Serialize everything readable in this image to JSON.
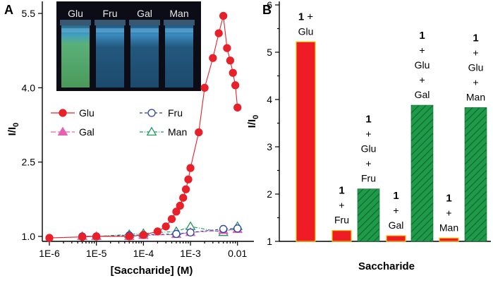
{
  "chart_data": [
    {
      "panel": "A",
      "type": "line",
      "xscale": "log",
      "xlim": [
        1e-06,
        0.012
      ],
      "ylim": [
        0.9,
        5.6
      ],
      "xlabel": "[Saccharide] (M)",
      "ylabel": "I/I",
      "ylabel_sub": "0",
      "xticks": [
        1e-06,
        1e-05,
        0.0001,
        0.001,
        0.01
      ],
      "xtick_labels": [
        "1E-6",
        "1E-5",
        "1E-4",
        "1E-3",
        "0.01"
      ],
      "yticks": [
        1.0,
        2.5,
        4.0,
        5.5
      ],
      "ytick_labels": [
        "1.0",
        "2.5",
        "4.0",
        "5.5"
      ],
      "inset_vials": [
        "Glu",
        "Fru",
        "Gal",
        "Man"
      ],
      "series": [
        {
          "name": "Glu",
          "color": "#e8202a",
          "marker": "circle-filled",
          "x": [
            1e-06,
            5e-06,
            1e-05,
            5e-05,
            0.0001,
            0.0002,
            0.0003,
            0.0004,
            0.0005,
            0.0006,
            0.0007,
            0.0008,
            0.0009,
            0.001,
            0.0015,
            0.002,
            0.003,
            0.004,
            0.005,
            0.006,
            0.007,
            0.008,
            0.009,
            0.01
          ],
          "y": [
            0.97,
            0.99,
            1.0,
            1.0,
            1.03,
            1.1,
            1.2,
            1.35,
            1.5,
            1.62,
            1.78,
            1.95,
            2.15,
            2.38,
            3.1,
            4.0,
            4.6,
            5.1,
            5.45,
            4.8,
            4.55,
            4.3,
            4.05,
            3.6
          ]
        },
        {
          "name": "Fru",
          "color": "#2a3fa8",
          "marker": "circle-open",
          "x": [
            5e-06,
            1e-05,
            5e-05,
            0.0001,
            0.0005,
            0.001,
            0.005,
            0.01
          ],
          "y": [
            1.0,
            1.0,
            1.02,
            1.03,
            1.05,
            1.08,
            1.15,
            1.16
          ]
        },
        {
          "name": "Gal",
          "color": "#e860b0",
          "marker": "triangle-filled",
          "x": [
            5e-06,
            1e-05,
            5e-05,
            0.0001,
            0.0005,
            0.001,
            0.005,
            0.01
          ],
          "y": [
            1.0,
            1.0,
            1.0,
            1.02,
            1.04,
            1.08,
            1.12,
            1.14
          ]
        },
        {
          "name": "Man",
          "color": "#1f9a60",
          "marker": "triangle-open",
          "x": [
            5e-06,
            1e-05,
            5e-05,
            0.0001,
            0.0005,
            0.001,
            0.005,
            0.01
          ],
          "y": [
            1.0,
            1.0,
            1.04,
            1.06,
            1.1,
            1.2,
            1.08,
            1.2
          ]
        }
      ]
    },
    {
      "panel": "B",
      "type": "bar",
      "ylim": [
        1,
        6
      ],
      "xlabel": "Saccharide",
      "ylabel": "I/I",
      "ylabel_sub": "0",
      "yticks": [
        1,
        2,
        3,
        4,
        5,
        6
      ],
      "ytick_labels": [
        "1",
        "2",
        "3",
        "4",
        "5",
        "6"
      ],
      "bars": [
        {
          "value": 5.22,
          "style": "red",
          "label_lines": [
            "1 +",
            "Glu"
          ]
        },
        {
          "value": 1.23,
          "style": "red",
          "label_lines": [
            "1",
            "+",
            "Fru"
          ]
        },
        {
          "value": 2.11,
          "style": "green",
          "label_lines": [
            "1",
            "+",
            "Glu",
            "+",
            "Fru"
          ]
        },
        {
          "value": 1.12,
          "style": "red",
          "label_lines": [
            "1",
            "+",
            "Gal"
          ]
        },
        {
          "value": 3.88,
          "style": "green",
          "label_lines": [
            "1",
            "+",
            "Glu",
            "+",
            "Gal"
          ]
        },
        {
          "value": 1.07,
          "style": "red",
          "label_lines": [
            "1",
            "+",
            "Man"
          ]
        },
        {
          "value": 3.83,
          "style": "green",
          "label_lines": [
            "1",
            "+",
            "Glu",
            "+",
            "Man"
          ]
        }
      ]
    }
  ],
  "colors": {
    "red_bar": "#ee1c25",
    "red_edge": "#f5c400",
    "green_bar": "#1f9a4a",
    "green_hatch": "#0e6a2c"
  }
}
